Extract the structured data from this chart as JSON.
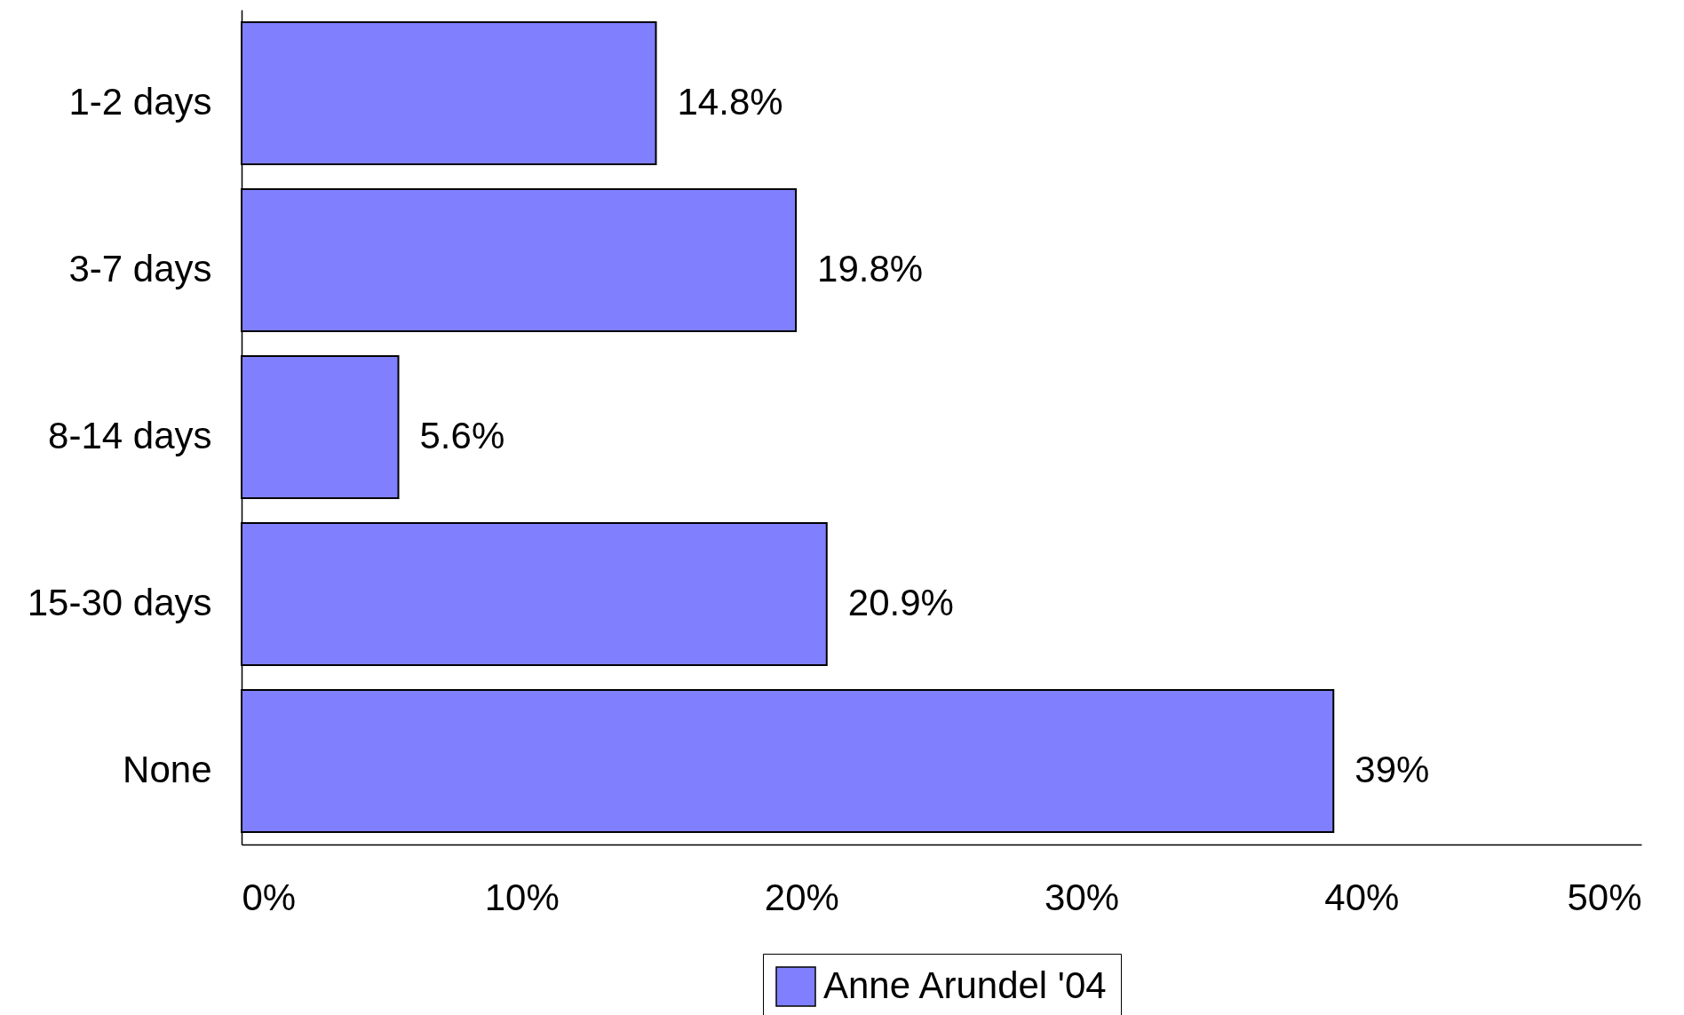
{
  "chart_data": {
    "type": "bar",
    "orientation": "horizontal",
    "categories": [
      "1-2 days",
      "3-7 days",
      "8-14 days",
      "15-30 days",
      "None"
    ],
    "series": [
      {
        "name": "Anne Arundel '04",
        "color": "#8080ff",
        "values": [
          14.8,
          19.8,
          5.6,
          20.9,
          39
        ],
        "value_labels": [
          "14.8%",
          "19.8%",
          "5.6%",
          "20.9%",
          "39%"
        ]
      }
    ],
    "xlim": [
      0,
      50
    ],
    "xticks": [
      {
        "value": 0,
        "label": "0%"
      },
      {
        "value": 10,
        "label": "10%"
      },
      {
        "value": 20,
        "label": "20%"
      },
      {
        "value": 30,
        "label": "30%"
      },
      {
        "value": 40,
        "label": "40%"
      },
      {
        "value": 50,
        "label": "50%"
      }
    ],
    "legend": "bottom"
  }
}
